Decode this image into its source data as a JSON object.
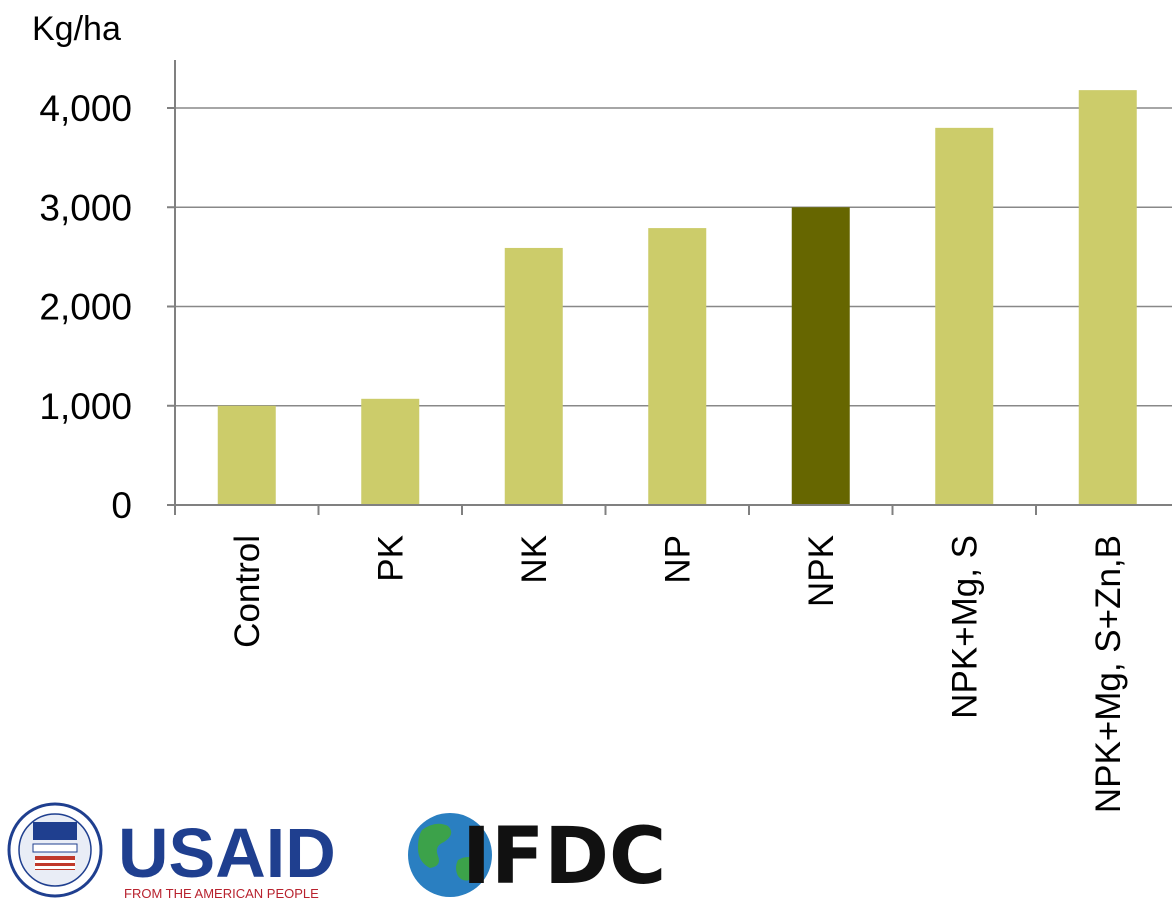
{
  "chart_data": {
    "type": "bar",
    "title": "",
    "xlabel": "",
    "ylabel": "Kg/ha",
    "categories": [
      "Control",
      "PK",
      "NK",
      "NP",
      "NPK",
      "NPK+Mg,  S",
      "NPK+Mg,  S+Zn,B"
    ],
    "values": [
      1000,
      1070,
      2590,
      2790,
      3000,
      3800,
      4180
    ],
    "highlight_index": 4,
    "ylim": [
      0,
      4000
    ],
    "yticks": [
      0,
      1000,
      2000,
      3000,
      4000
    ],
    "ytick_labels": [
      "0",
      "1,000",
      "2,000",
      "3,000",
      "4,000"
    ],
    "grid": true,
    "legend": "none",
    "colors": {
      "bar": "#cccc6a",
      "highlight": "#666600",
      "grid": "#888888",
      "axis": "#808080"
    }
  },
  "logos": {
    "usaid": {
      "name": "USAID",
      "tagline": "FROM THE AMERICAN PEOPLE",
      "icon": "usaid-seal-icon"
    },
    "ifdc": {
      "name": "IFDC",
      "icon": "globe-icon"
    }
  }
}
